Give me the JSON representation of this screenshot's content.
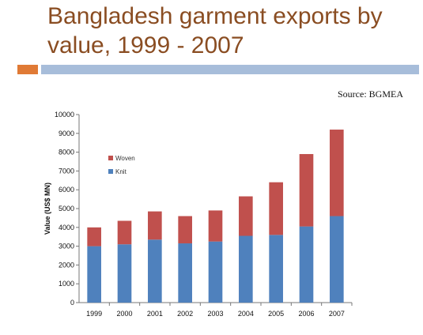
{
  "slide": {
    "title": "Bangladesh garment exports by value, 1999 - 2007",
    "source": "Source: BGMEA",
    "accent_colors": {
      "title": "#8a4d22",
      "orange_bar": "#e07a35",
      "blue_bar": "#a7bdda"
    }
  },
  "chart_data": {
    "type": "bar",
    "stacked": true,
    "title": "",
    "xlabel": "",
    "ylabel": "Value (US$ MN)",
    "categories": [
      "1999",
      "2000",
      "2001",
      "2002",
      "2003",
      "2004",
      "2005",
      "2006",
      "2007"
    ],
    "series": [
      {
        "name": "Knit",
        "color": "#4f81bd",
        "values": [
          3000,
          3100,
          3350,
          3150,
          3250,
          3550,
          3600,
          4050,
          4600
        ]
      },
      {
        "name": "Woven",
        "color": "#c0504d",
        "values": [
          1000,
          1250,
          1500,
          1450,
          1650,
          2100,
          2800,
          3850,
          4600
        ]
      }
    ],
    "ylim": [
      0,
      10000
    ],
    "yticks": [
      0,
      1000,
      2000,
      3000,
      4000,
      5000,
      6000,
      7000,
      8000,
      9000,
      10000
    ],
    "legend_position": "top-left",
    "grid": false
  }
}
